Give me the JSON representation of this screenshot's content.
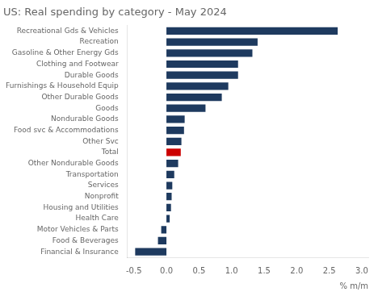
{
  "chart_data": {
    "type": "bar",
    "orientation": "horizontal",
    "title": "US: Real spending by category - May 2024",
    "xlabel": "% m/m",
    "categories": [
      "Financial & Insurance",
      "Food & Beverages",
      "Motor Vehicles & Parts",
      "Health Care",
      "Housing and Utilities",
      "Nonprofit",
      "Services",
      "Transportation",
      "Other Nondurable Goods",
      "Total",
      "Other Svc",
      "Food svc & Accommodations",
      "Nondurable Goods",
      "Goods",
      "Other Durable Goods",
      "Furnishings & Household Equip",
      "Durable Goods",
      "Clothing and Footwear",
      "Gasoline & Other Energy Gds",
      "Recreation",
      "Recreational Gds & Vehicles"
    ],
    "values": [
      -0.48,
      -0.13,
      -0.08,
      0.05,
      0.07,
      0.08,
      0.09,
      0.12,
      0.18,
      0.22,
      0.23,
      0.27,
      0.28,
      0.6,
      0.85,
      0.95,
      1.1,
      1.1,
      1.32,
      1.4,
      2.63
    ],
    "colors": [
      "#1e3a5f",
      "#1e3a5f",
      "#1e3a5f",
      "#1e3a5f",
      "#1e3a5f",
      "#1e3a5f",
      "#1e3a5f",
      "#1e3a5f",
      "#1e3a5f",
      "#cc0000",
      "#1e3a5f",
      "#1e3a5f",
      "#1e3a5f",
      "#1e3a5f",
      "#1e3a5f",
      "#1e3a5f",
      "#1e3a5f",
      "#1e3a5f",
      "#1e3a5f",
      "#1e3a5f",
      "#1e3a5f"
    ],
    "xlim": [
      -0.6,
      3.1
    ],
    "xticks": [
      -0.5,
      {
        "value": 0.0,
        "label": "0.0"
      },
      0.5,
      {
        "value": 1.0,
        "label": "1.0"
      },
      1.5,
      {
        "value": 2.0,
        "label": "2.0"
      },
      2.5,
      {
        "value": 3.0,
        "label": "3.0"
      }
    ],
    "grid": false
  }
}
